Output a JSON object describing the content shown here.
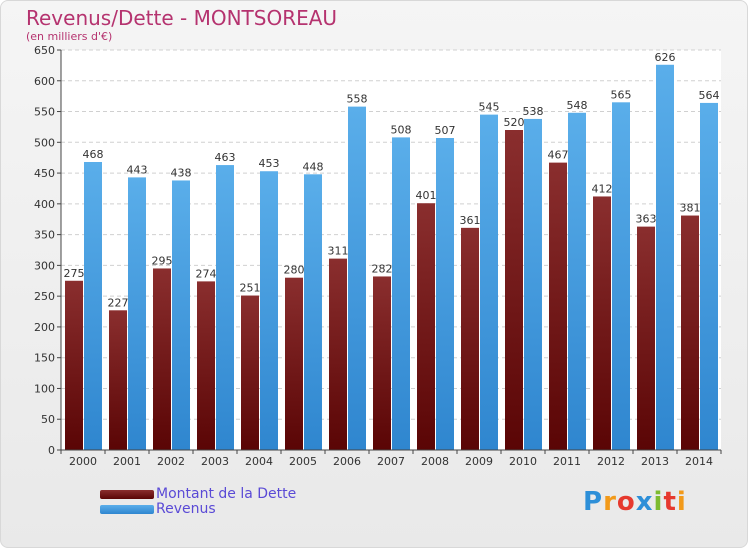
{
  "title": "Revenus/Dette - MONTSOREAU",
  "subtitle": "(en milliers d'€)",
  "logo": {
    "letters": [
      "P",
      "r",
      "o",
      "x",
      "i",
      "t",
      "i"
    ],
    "colors": [
      "#2d8fd8",
      "#f29a1a",
      "#e6392e",
      "#2d8fd8",
      "#7dbb2f",
      "#e6392e",
      "#f29a1a"
    ]
  },
  "colors": {
    "dette": "#7a1a1a",
    "revenus": "#4aa3e8"
  },
  "chart_data": {
    "type": "bar",
    "categories": [
      "2000",
      "2001",
      "2002",
      "2003",
      "2004",
      "2005",
      "2006",
      "2007",
      "2008",
      "2009",
      "2010",
      "2011",
      "2012",
      "2013",
      "2014"
    ],
    "series": [
      {
        "name": "Montant de la Dette",
        "values": [
          275,
          227,
          295,
          274,
          251,
          280,
          311,
          282,
          401,
          361,
          520,
          467,
          412,
          363,
          381
        ]
      },
      {
        "name": "Revenus",
        "values": [
          468,
          443,
          438,
          463,
          453,
          448,
          558,
          508,
          507,
          545,
          538,
          548,
          565,
          626,
          564
        ]
      }
    ],
    "yticks": [
      0,
      50,
      100,
      150,
      200,
      250,
      300,
      350,
      400,
      450,
      500,
      550,
      600,
      650
    ],
    "ylim": [
      0,
      650
    ],
    "grid": true,
    "legend": "bottom-left"
  }
}
